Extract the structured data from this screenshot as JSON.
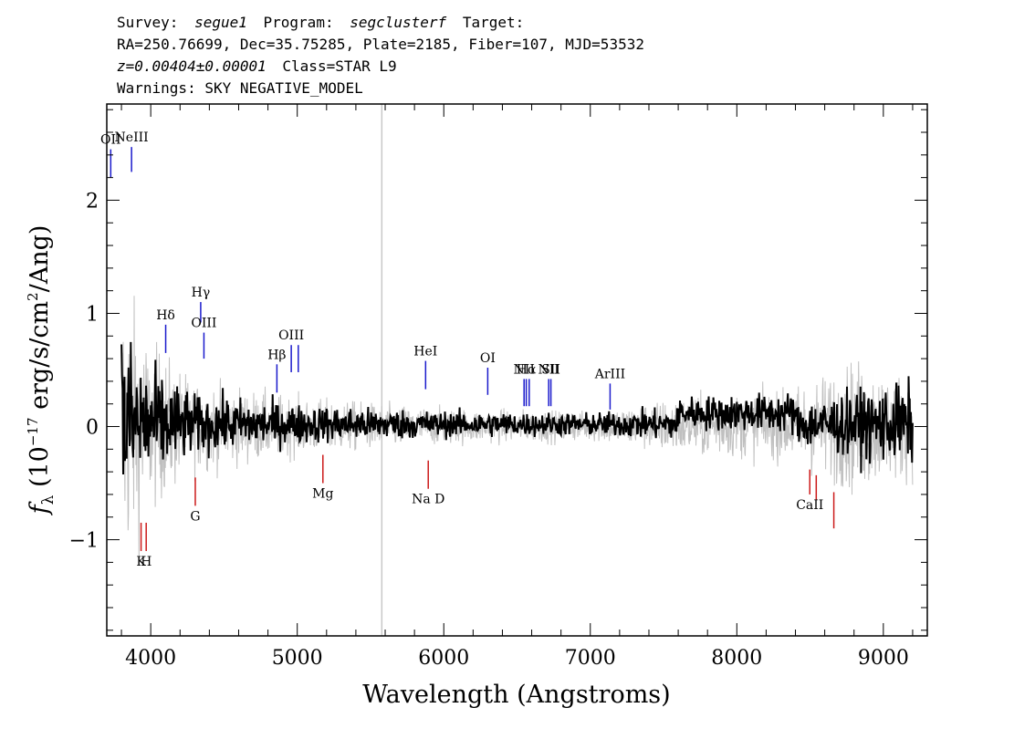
{
  "header": {
    "line1": {
      "survey_label": "Survey:",
      "survey": "segue1",
      "program_label": "Program:",
      "program": "segclusterf",
      "target_label": "Target:"
    },
    "line2": "RA=250.76699, Dec=35.75285, Plate=2185, Fiber=107, MJD=53532",
    "line3": {
      "z": "z=0.00404±0.00001",
      "class": "Class=STAR L9"
    },
    "line4": "Warnings: SKY NEGATIVE_MODEL"
  },
  "colors": {
    "flux": "#000000",
    "error": "#c0c0c0",
    "emission": "#1a1acc",
    "absorption": "#cc1a1a",
    "sky_line": "#c8c8c8"
  },
  "chart_data": {
    "type": "line",
    "xlabel": "Wavelength (Angstroms)",
    "ylabel": {
      "prefix": "f",
      "sub": "λ",
      "mid": " (10",
      "sup1": "−17",
      "mid2": " erg/s/cm",
      "sup2": "2",
      "suffix": "/Ang)"
    },
    "xlim": [
      3700,
      9300
    ],
    "ylim": [
      -1.85,
      2.85
    ],
    "xticks": [
      4000,
      5000,
      6000,
      7000,
      8000,
      9000
    ],
    "yticks": [
      -1,
      0,
      1,
      2
    ],
    "xtick_labels": [
      "4000",
      "5000",
      "6000",
      "7000",
      "8000",
      "9000"
    ],
    "ytick_labels": [
      "−1",
      "0",
      "1",
      "2"
    ],
    "grid": false,
    "legend": "none",
    "sky_line_x": 5577,
    "series": [
      {
        "role": "flux",
        "x_range": [
          3800,
          9200
        ],
        "noise_envelope": [
          [
            3800,
            0.6
          ],
          [
            4000,
            0.35
          ],
          [
            4300,
            0.18
          ],
          [
            5000,
            0.12
          ],
          [
            6000,
            0.08
          ],
          [
            7000,
            0.07
          ],
          [
            7600,
            0.1
          ],
          [
            8300,
            0.12
          ],
          [
            8800,
            0.2
          ],
          [
            9200,
            0.25
          ]
        ]
      },
      {
        "role": "error",
        "x_range": [
          3800,
          9200
        ],
        "noise_envelope": [
          [
            3800,
            1.8
          ],
          [
            4000,
            1.0
          ],
          [
            4300,
            0.55
          ],
          [
            5000,
            0.35
          ],
          [
            6000,
            0.22
          ],
          [
            7000,
            0.18
          ],
          [
            7600,
            0.35
          ],
          [
            8300,
            0.4
          ],
          [
            8800,
            0.8
          ],
          [
            9200,
            0.6
          ]
        ]
      }
    ],
    "emission_lines": [
      {
        "label": "OII",
        "x": 3727,
        "y0": 2.2,
        "y1": 2.45
      },
      {
        "label": "NeIII",
        "x": 3869,
        "y0": 2.25,
        "y1": 2.47
      },
      {
        "label": "Hδ",
        "x": 4102,
        "y0": 0.65,
        "y1": 0.9
      },
      {
        "label": "Hγ",
        "x": 4341,
        "y0": 0.92,
        "y1": 1.1
      },
      {
        "label": "OIII",
        "x": 4363,
        "y0": 0.6,
        "y1": 0.83
      },
      {
        "label": "Hβ",
        "x": 4861,
        "y0": 0.3,
        "y1": 0.55
      },
      {
        "label": "OIII",
        "x": 4959,
        "y0": 0.48,
        "y1": 0.72
      },
      {
        "label": "",
        "x": 5007,
        "y0": 0.48,
        "y1": 0.72
      },
      {
        "label": "HeI",
        "x": 5876,
        "y0": 0.33,
        "y1": 0.58
      },
      {
        "label": "OI",
        "x": 6300,
        "y0": 0.28,
        "y1": 0.52
      },
      {
        "label": "NII",
        "x": 6548,
        "y0": 0.18,
        "y1": 0.42
      },
      {
        "label": "Hα",
        "x": 6563,
        "y0": 0.18,
        "y1": 0.42
      },
      {
        "label": "",
        "x": 6583,
        "y0": 0.18,
        "y1": 0.42
      },
      {
        "label": "NII",
        "x": 6716,
        "y0": 0.18,
        "y1": 0.42
      },
      {
        "label": "SII",
        "x": 6731,
        "y0": 0.18,
        "y1": 0.42
      },
      {
        "label": "ArIII",
        "x": 7135,
        "y0": 0.15,
        "y1": 0.38
      }
    ],
    "absorption_lines": [
      {
        "label": "K",
        "x": 3934,
        "y0": -0.85,
        "y1": -1.1
      },
      {
        "label": "H",
        "x": 3969,
        "y0": -0.85,
        "y1": -1.1
      },
      {
        "label": "G",
        "x": 4304,
        "y0": -0.45,
        "y1": -0.7
      },
      {
        "label": "Mg",
        "x": 5175,
        "y0": -0.25,
        "y1": -0.5
      },
      {
        "label": "Na D",
        "x": 5894,
        "y0": -0.3,
        "y1": -0.55
      },
      {
        "label": "CaII",
        "x": 8498,
        "y0": -0.38,
        "y1": -0.6
      },
      {
        "label": "",
        "x": 8542,
        "y0": -0.43,
        "y1": -0.65
      },
      {
        "label": "",
        "x": 8662,
        "y0": -0.58,
        "y1": -0.9
      }
    ]
  }
}
